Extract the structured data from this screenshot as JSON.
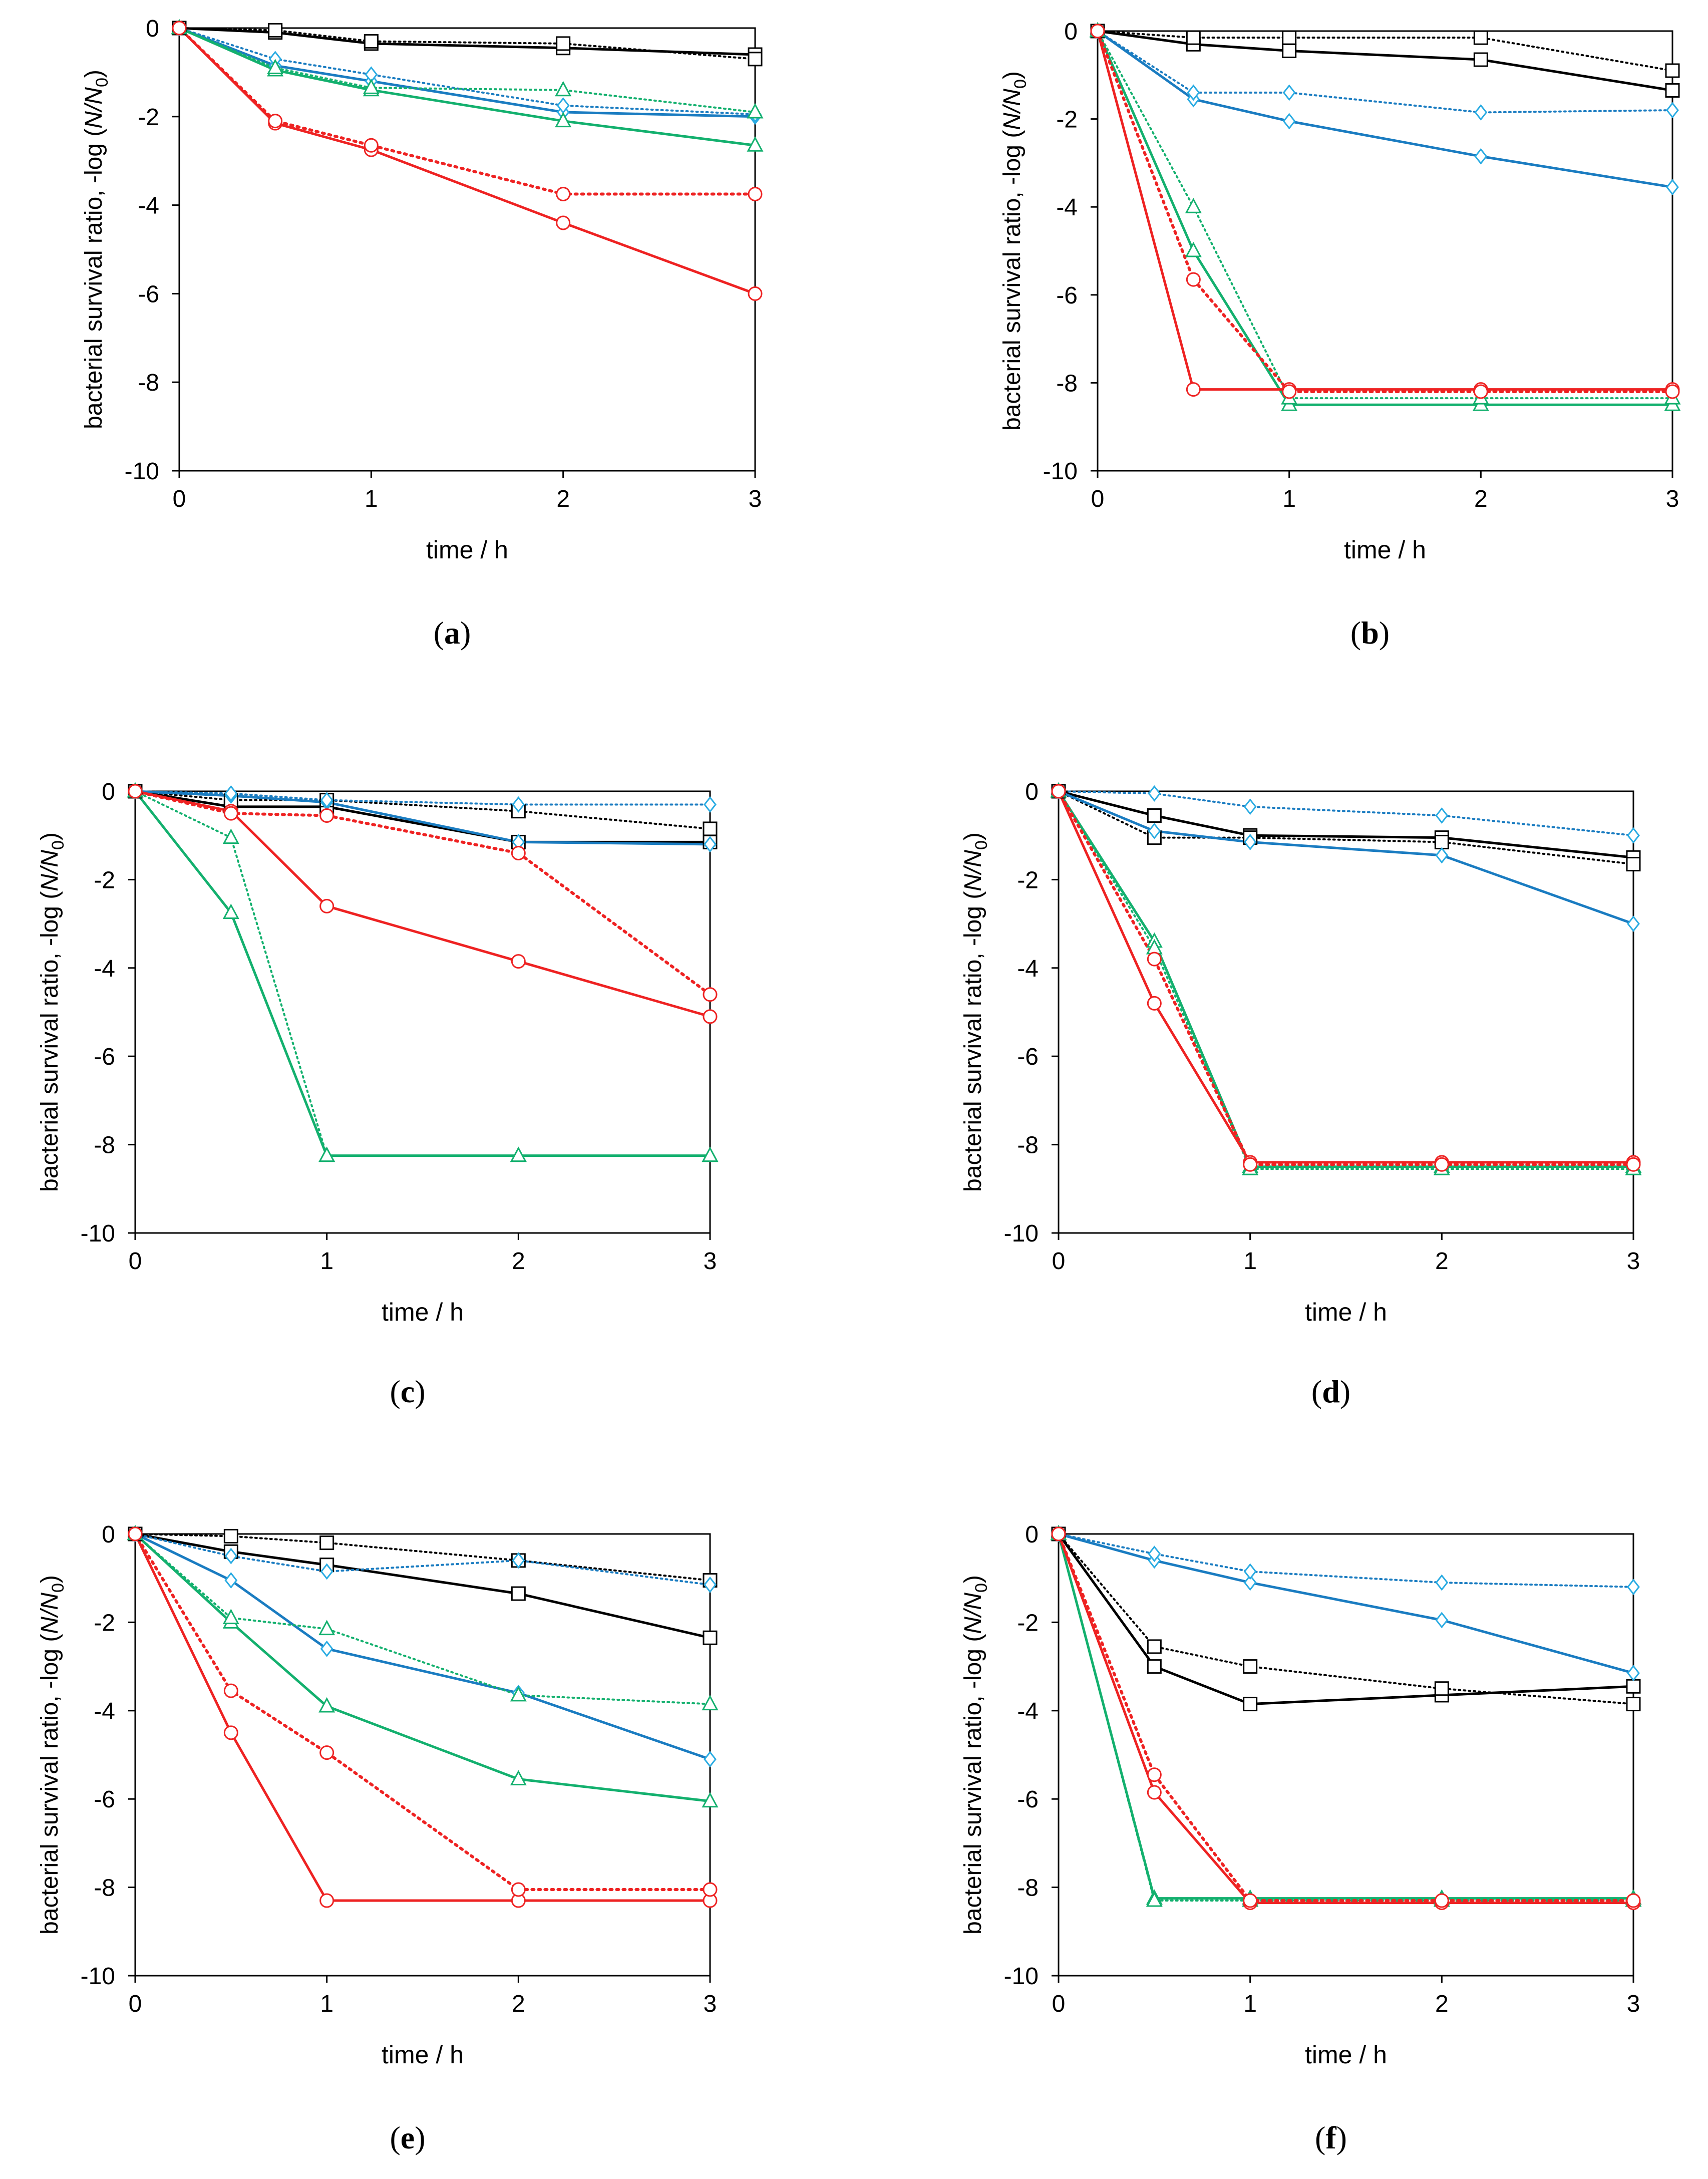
{
  "colors": {
    "control": "#000000",
    "blue": "#1a7cc1",
    "blue_marker": "#29abe2",
    "green": "#13b06e",
    "red": "#ee2222"
  },
  "chart_data": [
    {
      "type": "line",
      "panel_label": "a",
      "xlabel": "time / h",
      "ylabel": "bacterial survival ratio, -log (N/N0)",
      "x_ticks": [
        "0",
        "1",
        "2",
        "3"
      ],
      "y_ticks": [
        "0",
        "-2",
        "-4",
        "-6",
        "-8",
        "-10"
      ],
      "xlim": [
        0,
        3
      ],
      "ylim": [
        -10,
        0
      ],
      "x": [
        0,
        0.5,
        1,
        2,
        3
      ],
      "series": [
        {
          "name": "black-solid",
          "color": "control",
          "dash": "solid",
          "marker": "square",
          "values": [
            0,
            -0.1,
            -0.35,
            -0.45,
            -0.6
          ]
        },
        {
          "name": "black-dotted",
          "color": "control",
          "dash": "dotted",
          "marker": "square",
          "values": [
            0,
            -0.05,
            -0.3,
            -0.35,
            -0.7
          ]
        },
        {
          "name": "blue-solid",
          "color": "blue",
          "dash": "solid",
          "marker": "diamond",
          "values": [
            0,
            -0.85,
            -1.2,
            -1.9,
            -2.0
          ]
        },
        {
          "name": "blue-dotted",
          "color": "blue",
          "dash": "dotted",
          "marker": "diamond",
          "values": [
            0,
            -0.7,
            -1.05,
            -1.75,
            -1.95
          ]
        },
        {
          "name": "green-solid",
          "color": "green",
          "dash": "solid",
          "marker": "triangle",
          "values": [
            0,
            -0.95,
            -1.4,
            -2.1,
            -2.65
          ]
        },
        {
          "name": "green-dotted",
          "color": "green",
          "dash": "dotted",
          "marker": "triangle",
          "values": [
            0,
            -0.9,
            -1.35,
            -1.4,
            -1.9
          ]
        },
        {
          "name": "red-solid",
          "color": "red",
          "dash": "solid",
          "marker": "circle",
          "values": [
            0,
            -2.15,
            -2.75,
            -4.4,
            -6.0
          ]
        },
        {
          "name": "red-dotted",
          "color": "red",
          "dash": "dotted",
          "marker": "circle",
          "values": [
            0,
            -2.1,
            -2.65,
            -3.75,
            -3.75
          ]
        }
      ]
    },
    {
      "type": "line",
      "panel_label": "b",
      "xlabel": "time / h",
      "ylabel": "bacterial survival ratio, -log (N/N0)",
      "x_ticks": [
        "0",
        "1",
        "2",
        "3"
      ],
      "y_ticks": [
        "0",
        "-2",
        "-4",
        "-6",
        "-8",
        "-10"
      ],
      "xlim": [
        0,
        3
      ],
      "ylim": [
        -10,
        0
      ],
      "x": [
        0,
        0.5,
        1,
        2,
        3
      ],
      "series": [
        {
          "name": "black-solid",
          "color": "control",
          "dash": "solid",
          "marker": "square",
          "values": [
            0,
            -0.3,
            -0.45,
            -0.65,
            -1.35
          ]
        },
        {
          "name": "black-dotted",
          "color": "control",
          "dash": "dotted",
          "marker": "square",
          "values": [
            0,
            -0.15,
            -0.15,
            -0.15,
            -0.9
          ]
        },
        {
          "name": "blue-solid",
          "color": "blue",
          "dash": "solid",
          "marker": "diamond",
          "values": [
            0,
            -1.55,
            -2.05,
            -2.85,
            -3.55
          ]
        },
        {
          "name": "blue-dotted",
          "color": "blue",
          "dash": "dotted",
          "marker": "diamond",
          "values": [
            0,
            -1.4,
            -1.4,
            -1.85,
            -1.8
          ]
        },
        {
          "name": "green-solid",
          "color": "green",
          "dash": "solid",
          "marker": "triangle",
          "values": [
            0,
            -5.0,
            -8.5,
            -8.5,
            -8.5
          ]
        },
        {
          "name": "green-dotted",
          "color": "green",
          "dash": "dotted",
          "marker": "triangle",
          "values": [
            0,
            -4.0,
            -8.35,
            -8.35,
            -8.35
          ]
        },
        {
          "name": "red-solid",
          "color": "red",
          "dash": "solid",
          "marker": "circle",
          "values": [
            0,
            -8.15,
            -8.15,
            -8.15,
            -8.15
          ]
        },
        {
          "name": "red-dotted",
          "color": "red",
          "dash": "dotted",
          "marker": "circle",
          "values": [
            0,
            -5.65,
            -8.2,
            -8.2,
            -8.2
          ]
        }
      ]
    },
    {
      "type": "line",
      "panel_label": "c",
      "xlabel": "time / h",
      "ylabel": "bacterial survival ratio, -log (N/N0)",
      "x_ticks": [
        "0",
        "1",
        "2",
        "3"
      ],
      "y_ticks": [
        "0",
        "-2",
        "-4",
        "-6",
        "-8",
        "-10"
      ],
      "xlim": [
        0,
        3
      ],
      "ylim": [
        -10,
        0
      ],
      "x": [
        0,
        0.5,
        1,
        2,
        3
      ],
      "series": [
        {
          "name": "black-solid",
          "color": "control",
          "dash": "solid",
          "marker": "square",
          "values": [
            0,
            -0.35,
            -0.35,
            -1.15,
            -1.15
          ]
        },
        {
          "name": "black-dotted",
          "color": "control",
          "dash": "dotted",
          "marker": "square",
          "values": [
            0,
            -0.2,
            -0.2,
            -0.45,
            -0.85
          ]
        },
        {
          "name": "blue-solid",
          "color": "blue",
          "dash": "solid",
          "marker": "diamond",
          "values": [
            0,
            -0.1,
            -0.25,
            -1.15,
            -1.2
          ]
        },
        {
          "name": "blue-dotted",
          "color": "blue",
          "dash": "dotted",
          "marker": "diamond",
          "values": [
            0,
            -0.05,
            -0.2,
            -0.3,
            -0.3
          ]
        },
        {
          "name": "green-solid",
          "color": "green",
          "dash": "solid",
          "marker": "triangle",
          "values": [
            0,
            -2.75,
            -8.25,
            -8.25,
            -8.25
          ]
        },
        {
          "name": "green-dotted",
          "color": "green",
          "dash": "dotted",
          "marker": "triangle",
          "values": [
            0,
            -1.05,
            -8.25,
            -8.25,
            -8.25
          ]
        },
        {
          "name": "red-solid",
          "color": "red",
          "dash": "solid",
          "marker": "circle",
          "values": [
            0,
            -0.45,
            -2.6,
            -3.85,
            -5.1
          ]
        },
        {
          "name": "red-dotted",
          "color": "red",
          "dash": "dotted",
          "marker": "circle",
          "values": [
            0,
            -0.5,
            -0.55,
            -1.4,
            -4.6
          ]
        }
      ]
    },
    {
      "type": "line",
      "panel_label": "d",
      "xlabel": "time / h",
      "ylabel": "bacterial survival ratio, -log (N/N0)",
      "x_ticks": [
        "0",
        "1",
        "2",
        "3"
      ],
      "y_ticks": [
        "0",
        "-2",
        "-4",
        "-6",
        "-8",
        "-10"
      ],
      "xlim": [
        0,
        3
      ],
      "ylim": [
        -10,
        0
      ],
      "x": [
        0,
        0.5,
        1,
        2,
        3
      ],
      "series": [
        {
          "name": "black-solid",
          "color": "control",
          "dash": "solid",
          "marker": "square",
          "values": [
            0,
            -0.55,
            -1.0,
            -1.05,
            -1.5
          ]
        },
        {
          "name": "black-dotted",
          "color": "control",
          "dash": "dotted",
          "marker": "square",
          "values": [
            0,
            -1.05,
            -1.05,
            -1.15,
            -1.65
          ]
        },
        {
          "name": "blue-solid",
          "color": "blue",
          "dash": "solid",
          "marker": "diamond",
          "values": [
            0,
            -0.9,
            -1.15,
            -1.45,
            -3.0
          ]
        },
        {
          "name": "blue-dotted",
          "color": "blue",
          "dash": "dotted",
          "marker": "diamond",
          "values": [
            0,
            -0.05,
            -0.35,
            -0.55,
            -1.0
          ]
        },
        {
          "name": "green-solid",
          "color": "green",
          "dash": "solid",
          "marker": "triangle",
          "values": [
            0,
            -3.4,
            -8.5,
            -8.5,
            -8.5
          ]
        },
        {
          "name": "green-dotted",
          "color": "green",
          "dash": "dotted",
          "marker": "triangle",
          "values": [
            0,
            -3.55,
            -8.55,
            -8.55,
            -8.55
          ]
        },
        {
          "name": "red-solid",
          "color": "red",
          "dash": "solid",
          "marker": "circle",
          "values": [
            0,
            -4.8,
            -8.4,
            -8.4,
            -8.4
          ]
        },
        {
          "name": "red-dotted",
          "color": "red",
          "dash": "dotted",
          "marker": "circle",
          "values": [
            0,
            -3.8,
            -8.45,
            -8.45,
            -8.45
          ]
        }
      ]
    },
    {
      "type": "line",
      "panel_label": "e",
      "xlabel": "time / h",
      "ylabel": "bacterial survival ratio, -log (N/N0)",
      "x_ticks": [
        "0",
        "1",
        "2",
        "3"
      ],
      "y_ticks": [
        "0",
        "-2",
        "-4",
        "-6",
        "-8",
        "-10"
      ],
      "xlim": [
        0,
        3
      ],
      "ylim": [
        -10,
        0
      ],
      "x": [
        0,
        0.5,
        1,
        2,
        3
      ],
      "series": [
        {
          "name": "black-solid",
          "color": "control",
          "dash": "solid",
          "marker": "square",
          "values": [
            0,
            -0.4,
            -0.7,
            -1.35,
            -2.35
          ]
        },
        {
          "name": "black-dotted",
          "color": "control",
          "dash": "dotted",
          "marker": "square",
          "values": [
            0,
            -0.05,
            -0.2,
            -0.6,
            -1.05
          ]
        },
        {
          "name": "blue-solid",
          "color": "blue",
          "dash": "solid",
          "marker": "diamond",
          "values": [
            0,
            -1.05,
            -2.6,
            -3.6,
            -5.1
          ]
        },
        {
          "name": "blue-dotted",
          "color": "blue",
          "dash": "dotted",
          "marker": "diamond",
          "values": [
            0,
            -0.5,
            -0.85,
            -0.6,
            -1.15
          ]
        },
        {
          "name": "green-solid",
          "color": "green",
          "dash": "solid",
          "marker": "triangle",
          "values": [
            0,
            -2.0,
            -3.9,
            -5.55,
            -6.05
          ]
        },
        {
          "name": "green-dotted",
          "color": "green",
          "dash": "dotted",
          "marker": "triangle",
          "values": [
            0,
            -1.9,
            -2.15,
            -3.65,
            -3.85
          ]
        },
        {
          "name": "red-solid",
          "color": "red",
          "dash": "solid",
          "marker": "circle",
          "values": [
            0,
            -4.5,
            -8.3,
            -8.3,
            -8.3
          ]
        },
        {
          "name": "red-dotted",
          "color": "red",
          "dash": "dotted",
          "marker": "circle",
          "values": [
            0,
            -3.55,
            -4.95,
            -8.05,
            -8.05
          ]
        }
      ]
    },
    {
      "type": "line",
      "panel_label": "f",
      "xlabel": "time / h",
      "ylabel": "bacterial survival ratio, -log (N/N0)",
      "x_ticks": [
        "0",
        "1",
        "2",
        "3"
      ],
      "y_ticks": [
        "0",
        "-2",
        "-4",
        "-6",
        "-8",
        "-10"
      ],
      "xlim": [
        0,
        3
      ],
      "ylim": [
        -10,
        0
      ],
      "x": [
        0,
        0.5,
        1,
        2,
        3
      ],
      "series": [
        {
          "name": "black-solid",
          "color": "control",
          "dash": "solid",
          "marker": "square",
          "values": [
            0,
            -3.0,
            -3.85,
            -3.65,
            -3.45
          ]
        },
        {
          "name": "black-dotted",
          "color": "control",
          "dash": "dotted",
          "marker": "square",
          "values": [
            0,
            -2.55,
            -3.0,
            -3.5,
            -3.85
          ]
        },
        {
          "name": "blue-solid",
          "color": "blue",
          "dash": "solid",
          "marker": "diamond",
          "values": [
            0,
            -0.6,
            -1.1,
            -1.95,
            -3.15
          ]
        },
        {
          "name": "blue-dotted",
          "color": "blue",
          "dash": "dotted",
          "marker": "diamond",
          "values": [
            0,
            -0.45,
            -0.85,
            -1.1,
            -1.2
          ]
        },
        {
          "name": "green-solid",
          "color": "green",
          "dash": "solid",
          "marker": "triangle",
          "values": [
            0,
            -8.25,
            -8.25,
            -8.25,
            -8.25
          ]
        },
        {
          "name": "green-dotted",
          "color": "green",
          "dash": "dotted",
          "marker": "triangle",
          "values": [
            0,
            -8.3,
            -8.3,
            -8.3,
            -8.3
          ]
        },
        {
          "name": "red-solid",
          "color": "red",
          "dash": "solid",
          "marker": "circle",
          "values": [
            0,
            -5.85,
            -8.35,
            -8.35,
            -8.35
          ]
        },
        {
          "name": "red-dotted",
          "color": "red",
          "dash": "dotted",
          "marker": "circle",
          "values": [
            0,
            -5.45,
            -8.3,
            -8.3,
            -8.3
          ]
        }
      ]
    }
  ]
}
